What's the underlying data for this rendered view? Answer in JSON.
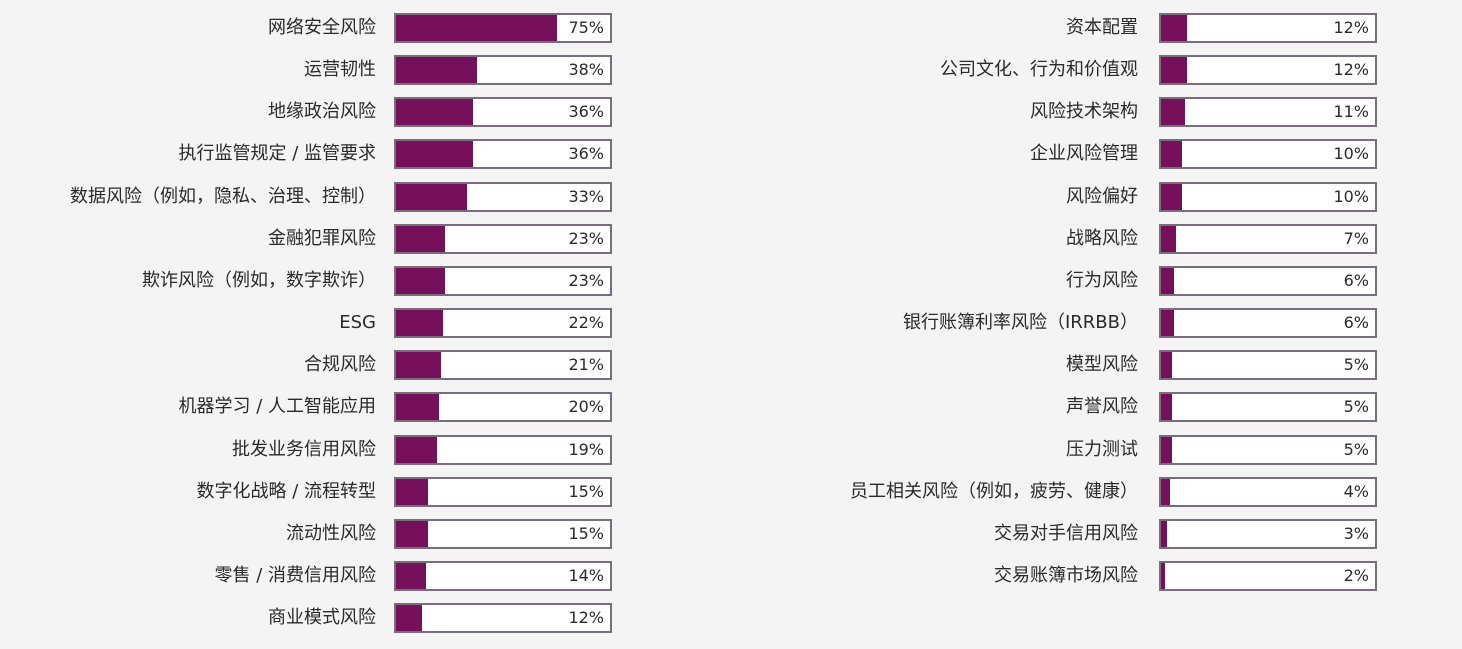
{
  "chart_data": {
    "type": "bar",
    "orientation": "horizontal",
    "value_suffix": "%",
    "xlim": [
      0,
      100
    ],
    "colors": {
      "bar": "#76105a",
      "track": "#ffffff",
      "border": "#77707c",
      "background": "#f4f4f4"
    },
    "columns": [
      {
        "categories": [
          "网络安全风险",
          "运营韧性",
          "地缘政治风险",
          "执行监管规定 / 监管要求",
          "数据风险（例如，隐私、治理、控制）",
          "金融犯罪风险",
          "欺诈风险（例如，数字欺诈）",
          "ESG",
          "合规风险",
          "机器学习 / 人工智能应用",
          "批发业务信用风险",
          "数字化战略 / 流程转型",
          "流动性风险",
          "零售 / 消费信用风险",
          "商业模式风险"
        ],
        "values": [
          75,
          38,
          36,
          36,
          33,
          23,
          23,
          22,
          21,
          20,
          19,
          15,
          15,
          14,
          12
        ]
      },
      {
        "categories": [
          "资本配置",
          "公司文化、行为和价值观",
          "风险技术架构",
          "企业风险管理",
          "风险偏好",
          "战略风险",
          "行为风险",
          "银行账簿利率风险（IRRBB）",
          "模型风险",
          "声誉风险",
          "压力测试",
          "员工相关风险（例如，疲劳、健康）",
          "交易对手信用风险",
          "交易账簿市场风险"
        ],
        "values": [
          12,
          12,
          11,
          10,
          10,
          7,
          6,
          6,
          5,
          5,
          5,
          4,
          3,
          2
        ]
      }
    ]
  }
}
